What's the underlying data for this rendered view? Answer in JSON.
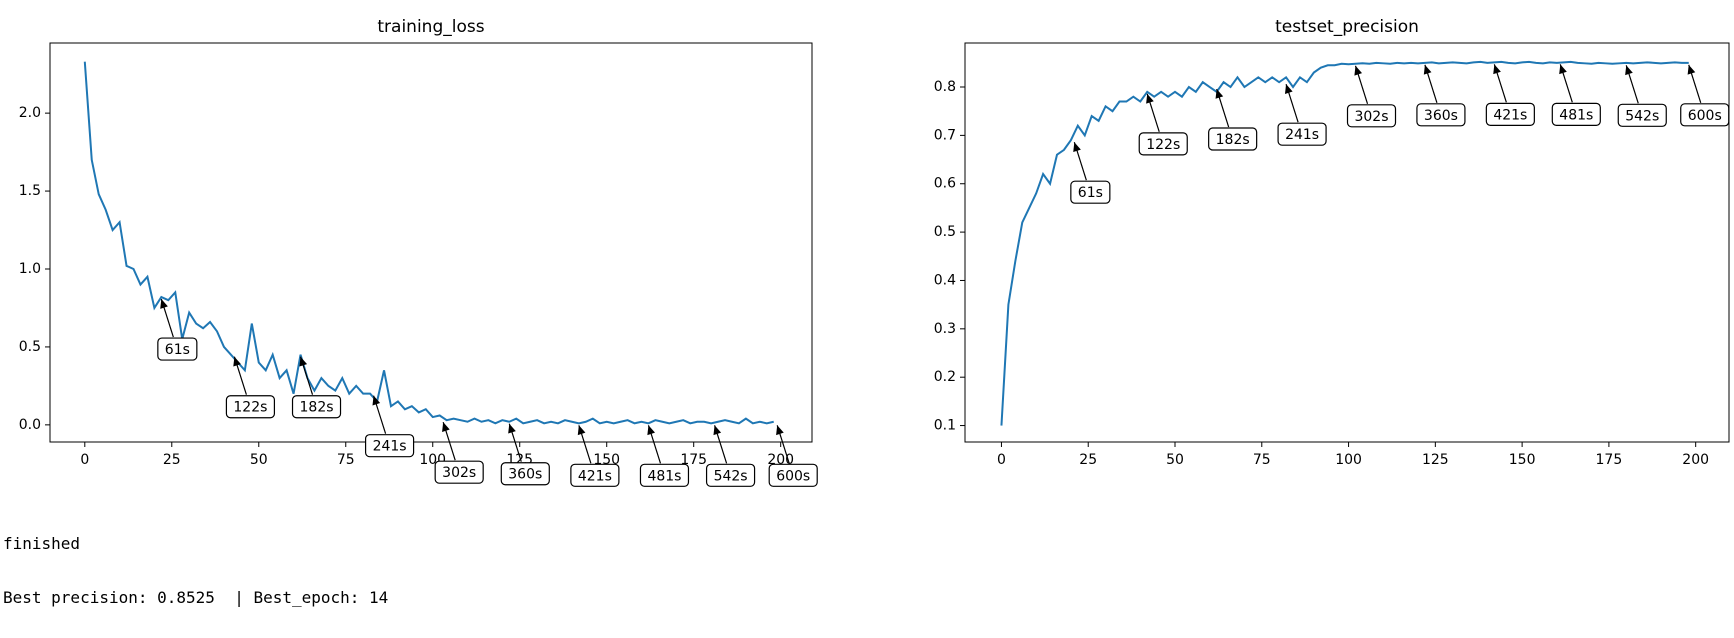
{
  "chart_data": [
    {
      "type": "line",
      "title": "training_loss",
      "x": [
        0,
        2,
        4,
        6,
        8,
        10,
        12,
        14,
        16,
        18,
        20,
        22,
        24,
        26,
        28,
        30,
        32,
        34,
        36,
        38,
        40,
        42,
        44,
        46,
        48,
        50,
        52,
        54,
        56,
        58,
        60,
        62,
        64,
        66,
        68,
        70,
        72,
        74,
        76,
        78,
        80,
        82,
        84,
        86,
        88,
        90,
        92,
        94,
        96,
        98,
        100,
        102,
        104,
        106,
        108,
        110,
        112,
        114,
        116,
        118,
        120,
        122,
        124,
        126,
        128,
        130,
        132,
        134,
        136,
        138,
        140,
        142,
        144,
        146,
        148,
        150,
        152,
        154,
        156,
        158,
        160,
        162,
        164,
        166,
        168,
        170,
        172,
        174,
        176,
        178,
        180,
        182,
        184,
        186,
        188,
        190,
        192,
        194,
        196,
        198
      ],
      "series": [
        {
          "color": "#1f77b4",
          "values": [
            2.33,
            1.7,
            1.48,
            1.38,
            1.25,
            1.3,
            1.02,
            1.0,
            0.9,
            0.95,
            0.75,
            0.82,
            0.8,
            0.85,
            0.55,
            0.72,
            0.65,
            0.62,
            0.66,
            0.6,
            0.5,
            0.45,
            0.4,
            0.35,
            0.65,
            0.4,
            0.35,
            0.45,
            0.3,
            0.35,
            0.2,
            0.45,
            0.3,
            0.22,
            0.3,
            0.25,
            0.22,
            0.3,
            0.2,
            0.25,
            0.2,
            0.2,
            0.15,
            0.35,
            0.12,
            0.15,
            0.1,
            0.12,
            0.08,
            0.1,
            0.05,
            0.06,
            0.03,
            0.04,
            0.03,
            0.02,
            0.04,
            0.02,
            0.03,
            0.01,
            0.03,
            0.02,
            0.04,
            0.01,
            0.02,
            0.03,
            0.01,
            0.02,
            0.01,
            0.03,
            0.02,
            0.01,
            0.02,
            0.04,
            0.01,
            0.02,
            0.01,
            0.02,
            0.03,
            0.01,
            0.02,
            0.01,
            0.03,
            0.02,
            0.01,
            0.02,
            0.03,
            0.01,
            0.02,
            0.02,
            0.01,
            0.02,
            0.03,
            0.02,
            0.01,
            0.04,
            0.01,
            0.02,
            0.01,
            0.02
          ]
        }
      ],
      "xlim": [
        -10,
        209
      ],
      "ylim": [
        -0.11,
        2.45
      ],
      "xticks": [
        0,
        25,
        50,
        75,
        100,
        125,
        150,
        175,
        200
      ],
      "yticks": [
        {
          "value": 0,
          "label": "0.0"
        },
        0.5,
        {
          "value": 1,
          "label": "1.0"
        },
        1.5,
        {
          "value": 2,
          "label": "2.0"
        }
      ],
      "annotations": [
        {
          "text": "61s",
          "x": 22,
          "y": 0.82
        },
        {
          "text": "122s",
          "x": 43,
          "y": 0.45
        },
        {
          "text": "182s",
          "x": 62,
          "y": 0.45
        },
        {
          "text": "241s",
          "x": 83,
          "y": 0.2
        },
        {
          "text": "302s",
          "x": 103,
          "y": 0.03
        },
        {
          "text": "360s",
          "x": 122,
          "y": 0.02
        },
        {
          "text": "421s",
          "x": 142,
          "y": 0.01
        },
        {
          "text": "481s",
          "x": 162,
          "y": 0.01
        },
        {
          "text": "542s",
          "x": 181,
          "y": 0.01
        },
        {
          "text": "600s",
          "x": 199,
          "y": 0.01
        }
      ]
    },
    {
      "type": "line",
      "title": "testset_precision",
      "x": [
        0,
        2,
        4,
        6,
        8,
        10,
        12,
        14,
        16,
        18,
        20,
        22,
        24,
        26,
        28,
        30,
        32,
        34,
        36,
        38,
        40,
        42,
        44,
        46,
        48,
        50,
        52,
        54,
        56,
        58,
        60,
        62,
        64,
        66,
        68,
        70,
        72,
        74,
        76,
        78,
        80,
        82,
        84,
        86,
        88,
        90,
        92,
        94,
        96,
        98,
        100,
        102,
        104,
        106,
        108,
        110,
        112,
        114,
        116,
        118,
        120,
        122,
        124,
        126,
        128,
        130,
        132,
        134,
        136,
        138,
        140,
        142,
        144,
        146,
        148,
        150,
        152,
        154,
        156,
        158,
        160,
        162,
        164,
        166,
        168,
        170,
        172,
        174,
        176,
        178,
        180,
        182,
        184,
        186,
        188,
        190,
        192,
        194,
        196,
        198
      ],
      "series": [
        {
          "color": "#1f77b4",
          "values": [
            0.1,
            0.35,
            0.44,
            0.52,
            0.55,
            0.58,
            0.62,
            0.6,
            0.66,
            0.67,
            0.69,
            0.72,
            0.7,
            0.74,
            0.73,
            0.76,
            0.75,
            0.77,
            0.77,
            0.78,
            0.77,
            0.79,
            0.78,
            0.79,
            0.78,
            0.79,
            0.78,
            0.8,
            0.79,
            0.81,
            0.8,
            0.79,
            0.81,
            0.8,
            0.82,
            0.8,
            0.81,
            0.82,
            0.81,
            0.82,
            0.81,
            0.82,
            0.8,
            0.82,
            0.81,
            0.83,
            0.84,
            0.845,
            0.845,
            0.848,
            0.847,
            0.848,
            0.849,
            0.848,
            0.85,
            0.849,
            0.848,
            0.85,
            0.849,
            0.85,
            0.849,
            0.85,
            0.851,
            0.849,
            0.85,
            0.851,
            0.85,
            0.849,
            0.851,
            0.852,
            0.85,
            0.851,
            0.852,
            0.85,
            0.849,
            0.851,
            0.852,
            0.85,
            0.849,
            0.851,
            0.85,
            0.851,
            0.852,
            0.85,
            0.849,
            0.848,
            0.85,
            0.849,
            0.848,
            0.849,
            0.85,
            0.849,
            0.85,
            0.851,
            0.85,
            0.849,
            0.85,
            0.851,
            0.85,
            0.85
          ]
        }
      ],
      "xlim": [
        -10.5,
        209.6
      ],
      "ylim": [
        0.066,
        0.891
      ],
      "xticks": [
        0,
        25,
        50,
        75,
        100,
        125,
        150,
        175,
        200
      ],
      "yticks": [
        0.1,
        0.2,
        0.3,
        0.4,
        0.5,
        0.6,
        0.7,
        0.8
      ],
      "annotations": [
        {
          "text": "61s",
          "x": 21,
          "y": 0.69
        },
        {
          "text": "122s",
          "x": 42,
          "y": 0.79
        },
        {
          "text": "182s",
          "x": 62,
          "y": 0.8
        },
        {
          "text": "241s",
          "x": 82,
          "y": 0.81
        },
        {
          "text": "302s",
          "x": 102,
          "y": 0.848
        },
        {
          "text": "360s",
          "x": 122,
          "y": 0.85
        },
        {
          "text": "421s",
          "x": 142,
          "y": 0.851
        },
        {
          "text": "481s",
          "x": 161,
          "y": 0.851
        },
        {
          "text": "542s",
          "x": 180,
          "y": 0.849
        },
        {
          "text": "600s",
          "x": 198,
          "y": 0.85
        }
      ]
    }
  ],
  "console_output": [
    "finished",
    "Best precision: 0.8525  | Best_epoch: 14"
  ]
}
